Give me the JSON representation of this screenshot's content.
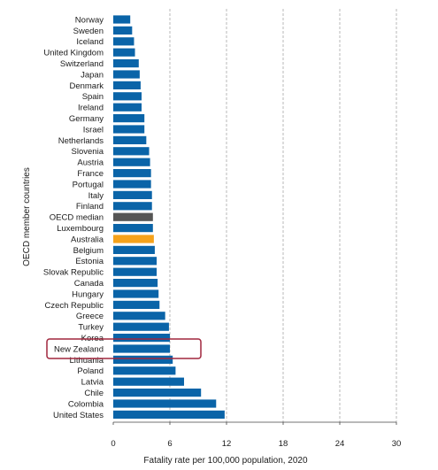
{
  "chart_data": {
    "type": "bar",
    "orientation": "horizontal",
    "xlabel": "Fatality rate per 100,000 population, 2020",
    "ylabel": "OECD member countries",
    "xlim": [
      0,
      30
    ],
    "xticks": [
      0,
      6,
      12,
      18,
      24,
      30
    ],
    "grid": "vertical-dashed",
    "highlight_box": "New Zealand",
    "colors": {
      "default": "#0a64a8",
      "median": "#555555",
      "australia": "#f5a21b",
      "highlight_box": "#a0263d"
    },
    "categories": [
      "Norway",
      "Sweden",
      "Iceland",
      "United Kingdom",
      "Switzerland",
      "Japan",
      "Denmark",
      "Spain",
      "Ireland",
      "Germany",
      "Israel",
      "Netherlands",
      "Slovenia",
      "Austria",
      "France",
      "Portugal",
      "Italy",
      "Finland",
      "OECD median",
      "Luxembourg",
      "Australia",
      "Belgium",
      "Estonia",
      "Slovak Republic",
      "Canada",
      "Hungary",
      "Czech Republic",
      "Greece",
      "Turkey",
      "Korea",
      "New Zealand",
      "Lithuania",
      "Poland",
      "Latvia",
      "Chile",
      "Colombia",
      "United States"
    ],
    "values": [
      1.8,
      2.0,
      2.2,
      2.3,
      2.7,
      2.8,
      2.9,
      3.0,
      3.0,
      3.3,
      3.3,
      3.5,
      3.8,
      3.9,
      4.0,
      4.0,
      4.1,
      4.1,
      4.2,
      4.2,
      4.3,
      4.4,
      4.6,
      4.6,
      4.7,
      4.8,
      4.9,
      5.5,
      5.9,
      6.0,
      6.0,
      6.3,
      6.6,
      7.5,
      9.3,
      10.9,
      11.8
    ],
    "bar_colors": [
      "default",
      "default",
      "default",
      "default",
      "default",
      "default",
      "default",
      "default",
      "default",
      "default",
      "default",
      "default",
      "default",
      "default",
      "default",
      "default",
      "default",
      "default",
      "median",
      "default",
      "australia",
      "default",
      "default",
      "default",
      "default",
      "default",
      "default",
      "default",
      "default",
      "default",
      "default",
      "default",
      "default",
      "default",
      "default",
      "default",
      "default"
    ]
  }
}
